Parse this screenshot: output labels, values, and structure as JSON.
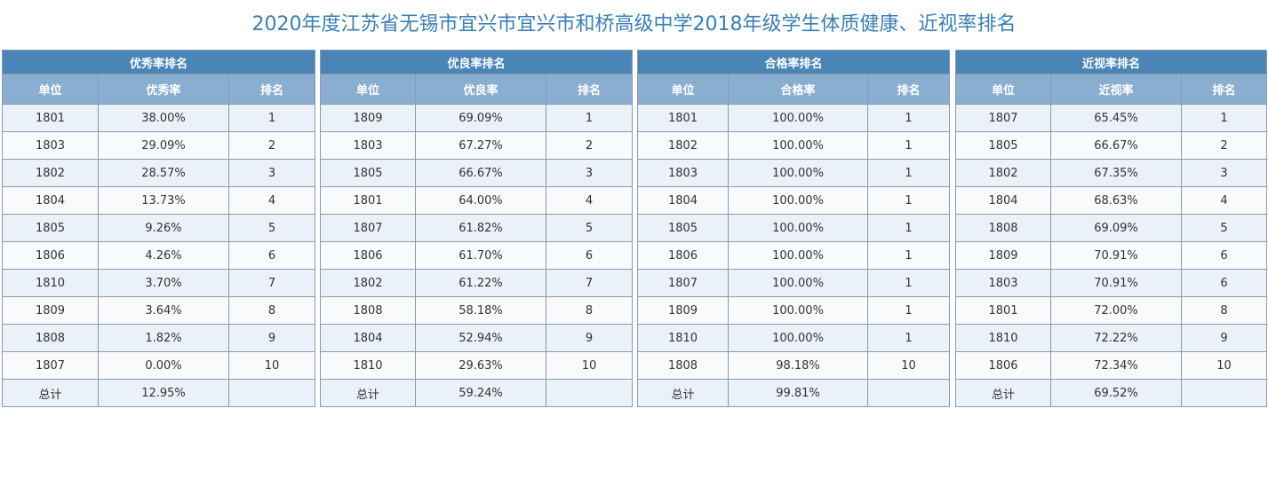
{
  "page": {
    "title": "2020年度江苏省无锡市宜兴市宜兴市和桥高级中学2018年级学生体质健康、近视率排名"
  },
  "tables": [
    {
      "title": "优秀率排名",
      "headers": [
        "单位",
        "优秀率",
        "排名"
      ],
      "rows": [
        [
          "1801",
          "38.00%",
          "1"
        ],
        [
          "1803",
          "29.09%",
          "2"
        ],
        [
          "1802",
          "28.57%",
          "3"
        ],
        [
          "1804",
          "13.73%",
          "4"
        ],
        [
          "1805",
          "9.26%",
          "5"
        ],
        [
          "1806",
          "4.26%",
          "6"
        ],
        [
          "1810",
          "3.70%",
          "7"
        ],
        [
          "1809",
          "3.64%",
          "8"
        ],
        [
          "1808",
          "1.82%",
          "9"
        ],
        [
          "1807",
          "0.00%",
          "10"
        ]
      ],
      "total": [
        "总计",
        "12.95%",
        ""
      ]
    },
    {
      "title": "优良率排名",
      "headers": [
        "单位",
        "优良率",
        "排名"
      ],
      "rows": [
        [
          "1809",
          "69.09%",
          "1"
        ],
        [
          "1803",
          "67.27%",
          "2"
        ],
        [
          "1805",
          "66.67%",
          "3"
        ],
        [
          "1801",
          "64.00%",
          "4"
        ],
        [
          "1807",
          "61.82%",
          "5"
        ],
        [
          "1806",
          "61.70%",
          "6"
        ],
        [
          "1802",
          "61.22%",
          "7"
        ],
        [
          "1808",
          "58.18%",
          "8"
        ],
        [
          "1804",
          "52.94%",
          "9"
        ],
        [
          "1810",
          "29.63%",
          "10"
        ]
      ],
      "total": [
        "总计",
        "59.24%",
        ""
      ]
    },
    {
      "title": "合格率排名",
      "headers": [
        "单位",
        "合格率",
        "排名"
      ],
      "rows": [
        [
          "1801",
          "100.00%",
          "1"
        ],
        [
          "1802",
          "100.00%",
          "1"
        ],
        [
          "1803",
          "100.00%",
          "1"
        ],
        [
          "1804",
          "100.00%",
          "1"
        ],
        [
          "1805",
          "100.00%",
          "1"
        ],
        [
          "1806",
          "100.00%",
          "1"
        ],
        [
          "1807",
          "100.00%",
          "1"
        ],
        [
          "1809",
          "100.00%",
          "1"
        ],
        [
          "1810",
          "100.00%",
          "1"
        ],
        [
          "1808",
          "98.18%",
          "10"
        ]
      ],
      "total": [
        "总计",
        "99.81%",
        ""
      ]
    },
    {
      "title": "近视率排名",
      "headers": [
        "单位",
        "近视率",
        "排名"
      ],
      "rows": [
        [
          "1807",
          "65.45%",
          "1"
        ],
        [
          "1805",
          "66.67%",
          "2"
        ],
        [
          "1802",
          "67.35%",
          "3"
        ],
        [
          "1804",
          "68.63%",
          "4"
        ],
        [
          "1808",
          "69.09%",
          "5"
        ],
        [
          "1809",
          "70.91%",
          "6"
        ],
        [
          "1803",
          "70.91%",
          "6"
        ],
        [
          "1801",
          "72.00%",
          "8"
        ],
        [
          "1810",
          "72.22%",
          "9"
        ],
        [
          "1806",
          "72.34%",
          "10"
        ]
      ],
      "total": [
        "总计",
        "69.52%",
        ""
      ]
    }
  ],
  "colors": {
    "title_text": "#3a7fb5",
    "table_title_bg": "#4a85b8",
    "header_bg": "#8aaed0",
    "row_alt_bg": "#eaf1f8",
    "row_bg": "#f8fafc",
    "border": "#8a9aab"
  }
}
